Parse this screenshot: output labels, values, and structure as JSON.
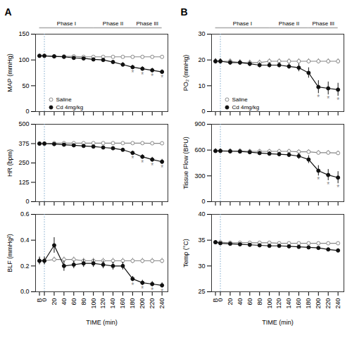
{
  "chart_data": [
    {
      "type": "line",
      "panel_label": "A",
      "phases": [
        {
          "label": "Phase I",
          "x0": -10,
          "x1": 100,
          "color": "#aaaaaa"
        },
        {
          "label": "Phase II",
          "x0": 100,
          "x1": 180,
          "color": "#aaaaaa"
        },
        {
          "label": "Phase III",
          "x0": 180,
          "x1": 240,
          "color": "#aaaaaa"
        }
      ],
      "x": [
        -10,
        0,
        20,
        40,
        60,
        80,
        100,
        120,
        140,
        160,
        180,
        200,
        220,
        240
      ],
      "xlim": [
        -18,
        252
      ],
      "xticks": [
        {
          "value": -10,
          "label": "B"
        },
        0,
        20,
        40,
        60,
        80,
        100,
        120,
        140,
        160,
        180,
        200,
        220,
        240
      ],
      "tick_labels": "y",
      "ylim": [
        0,
        150
      ],
      "yticks": [
        0,
        50,
        100,
        150
      ],
      "ylabel": "MAP (mmHg)",
      "legend": "lower left",
      "vlines": [
        {
          "x": 0,
          "color": "#7faacc",
          "line_style": "dotted"
        }
      ],
      "series": [
        {
          "name": "Saline",
          "color": "#888888",
          "marker": "open_circle",
          "values": [
            108,
            108,
            107,
            107,
            107,
            106,
            106,
            106,
            106,
            106,
            106,
            106,
            106,
            106
          ],
          "errors": [
            2,
            2,
            2,
            2,
            2,
            2,
            2,
            2,
            2,
            2,
            2,
            2,
            2,
            2
          ]
        },
        {
          "name": "Cd 4mg/kg",
          "color": "#111111",
          "marker": "circle",
          "values": [
            108,
            108,
            107,
            106,
            104,
            103,
            101,
            100,
            96,
            91,
            86,
            83,
            80,
            77
          ],
          "errors": [
            2,
            2,
            2,
            2,
            2,
            2,
            2,
            3,
            3,
            4,
            4,
            4,
            4,
            4
          ],
          "significant": [
            false,
            false,
            false,
            false,
            false,
            false,
            false,
            false,
            false,
            false,
            true,
            true,
            true,
            true
          ],
          "significance_mark": "*",
          "significance_color": "#888888"
        }
      ]
    },
    {
      "type": "line",
      "panel_label": "B",
      "phases": [
        {
          "label": "Phase I",
          "x0": -10,
          "x1": 100,
          "color": "#aaaaaa"
        },
        {
          "label": "Phase II",
          "x0": 100,
          "x1": 180,
          "color": "#aaaaaa"
        },
        {
          "label": "Phase III",
          "x0": 180,
          "x1": 240,
          "color": "#aaaaaa"
        }
      ],
      "x": [
        -10,
        0,
        20,
        40,
        60,
        80,
        100,
        120,
        140,
        160,
        180,
        200,
        220,
        240
      ],
      "xlim": [
        -18,
        252
      ],
      "xticks": [
        {
          "value": -10,
          "label": "B"
        },
        0,
        20,
        40,
        60,
        80,
        100,
        120,
        140,
        160,
        180,
        200,
        220,
        240
      ],
      "tick_labels": "y",
      "ylim": [
        0,
        30
      ],
      "yticks": [
        0,
        10,
        20,
        30
      ],
      "ylabel": "PO₂ (mmHg)",
      "legend": "lower left",
      "vlines": [
        {
          "x": 0,
          "color": "#7faacc",
          "line_style": "dotted"
        }
      ],
      "series": [
        {
          "name": "Saline",
          "color": "#888888",
          "marker": "open_circle",
          "values": [
            19.5,
            19.5,
            19.5,
            19.0,
            19.0,
            19.0,
            19.5,
            19.5,
            19.5,
            19.5,
            19.5,
            19.5,
            19.5,
            19.5
          ],
          "errors": [
            1.0,
            1.0,
            1.0,
            1.0,
            1.0,
            1.0,
            1.0,
            1.0,
            1.0,
            1.0,
            1.0,
            1.0,
            1.0,
            1.0
          ]
        },
        {
          "name": "Cd 4mg/kg",
          "color": "#111111",
          "marker": "circle",
          "values": [
            19.5,
            19.5,
            19.0,
            19.0,
            18.5,
            18.0,
            18.0,
            18.0,
            17.5,
            17.0,
            15.0,
            9.5,
            9.0,
            8.5
          ],
          "errors": [
            1.0,
            1.0,
            1.0,
            1.0,
            1.0,
            1.0,
            1.0,
            1.0,
            1.0,
            1.5,
            2.0,
            2.5,
            2.5,
            2.5
          ],
          "significant": [
            false,
            false,
            false,
            false,
            false,
            false,
            false,
            false,
            false,
            false,
            false,
            true,
            true,
            true
          ],
          "significance_mark": "*",
          "significance_color": "#888888"
        }
      ]
    },
    {
      "type": "line",
      "x": [
        -10,
        0,
        20,
        40,
        60,
        80,
        100,
        120,
        140,
        160,
        180,
        200,
        220,
        240
      ],
      "xlim": [
        -18,
        252
      ],
      "xticks": [
        {
          "value": -10,
          "label": "B"
        },
        0,
        20,
        40,
        60,
        80,
        100,
        120,
        140,
        160,
        180,
        200,
        220,
        240
      ],
      "tick_labels": "y",
      "ylim": [
        0,
        500
      ],
      "yticks": [
        0,
        125,
        250,
        375,
        500
      ],
      "ylabel": "HR (bpm)",
      "vlines": [
        {
          "x": 0,
          "color": "#7faacc",
          "line_style": "dotted"
        }
      ],
      "series": [
        {
          "color": "#888888",
          "marker": "open_circle",
          "values": [
            375,
            375,
            378,
            378,
            378,
            378,
            378,
            378,
            378,
            378,
            378,
            378,
            377,
            377
          ],
          "errors": [
            8,
            8,
            8,
            8,
            8,
            8,
            8,
            8,
            8,
            8,
            8,
            8,
            8,
            8
          ]
        },
        {
          "color": "#111111",
          "marker": "circle",
          "values": [
            375,
            375,
            372,
            368,
            364,
            360,
            356,
            350,
            345,
            335,
            315,
            290,
            272,
            258
          ],
          "errors": [
            8,
            8,
            8,
            8,
            8,
            8,
            9,
            9,
            10,
            10,
            12,
            14,
            15,
            16
          ],
          "significant": [
            false,
            false,
            false,
            false,
            false,
            false,
            false,
            false,
            false,
            false,
            true,
            true,
            true,
            true
          ],
          "significance_mark": "*",
          "significance_color": "#888888"
        }
      ]
    },
    {
      "type": "line",
      "x": [
        -10,
        0,
        20,
        40,
        60,
        80,
        100,
        120,
        140,
        160,
        180,
        200,
        220,
        240
      ],
      "xlim": [
        -18,
        252
      ],
      "xticks": [
        {
          "value": -10,
          "label": "B"
        },
        0,
        20,
        40,
        60,
        80,
        100,
        120,
        140,
        160,
        180,
        200,
        220,
        240
      ],
      "tick_labels": "y",
      "ylim": [
        0,
        900
      ],
      "yticks": [
        0,
        300,
        600,
        900
      ],
      "ylabel": "Tissue Flow (BPU)",
      "vlines": [
        {
          "x": 0,
          "color": "#7faacc",
          "line_style": "dotted"
        }
      ],
      "series": [
        {
          "color": "#888888",
          "marker": "open_circle",
          "values": [
            590,
            590,
            590,
            590,
            585,
            585,
            585,
            585,
            585,
            580,
            580,
            570,
            570,
            565
          ],
          "errors": [
            25,
            25,
            25,
            25,
            25,
            25,
            25,
            25,
            25,
            25,
            25,
            25,
            25,
            25
          ]
        },
        {
          "color": "#111111",
          "marker": "circle",
          "values": [
            590,
            590,
            585,
            583,
            575,
            565,
            558,
            552,
            545,
            530,
            490,
            360,
            310,
            280
          ],
          "errors": [
            25,
            25,
            25,
            25,
            25,
            25,
            25,
            25,
            30,
            35,
            45,
            60,
            65,
            70
          ],
          "significant": [
            false,
            false,
            false,
            false,
            false,
            false,
            false,
            false,
            false,
            false,
            false,
            true,
            true,
            true
          ],
          "significance_mark": "*",
          "significance_color": "#888888"
        }
      ]
    },
    {
      "type": "line",
      "x": [
        -10,
        0,
        20,
        40,
        60,
        80,
        100,
        120,
        140,
        160,
        180,
        200,
        220,
        240
      ],
      "xlim": [
        -18,
        252
      ],
      "xticks": [
        {
          "value": -10,
          "label": "B"
        },
        0,
        20,
        40,
        60,
        80,
        100,
        120,
        140,
        160,
        180,
        200,
        220,
        240
      ],
      "xlabel": "TIME (min)",
      "ylim": [
        0.0,
        0.6
      ],
      "yticks": [
        {
          "value": 0.0,
          "label": "0.0"
        },
        {
          "value": 0.2,
          "label": "0.2"
        },
        {
          "value": 0.4,
          "label": "0.4"
        },
        {
          "value": 0.6,
          "label": "0.6"
        }
      ],
      "ylabel": "BLF (mmHg²)",
      "vlines": [
        {
          "x": 0,
          "color": "#7faacc",
          "line_style": "dotted"
        }
      ],
      "series": [
        {
          "color": "#888888",
          "marker": "open_circle",
          "values": [
            0.24,
            0.24,
            0.25,
            0.25,
            0.25,
            0.24,
            0.24,
            0.24,
            0.24,
            0.24,
            0.24,
            0.24,
            0.24,
            0.24
          ],
          "errors": [
            0.02,
            0.02,
            0.02,
            0.02,
            0.02,
            0.02,
            0.02,
            0.02,
            0.02,
            0.02,
            0.02,
            0.02,
            0.02,
            0.02
          ]
        },
        {
          "color": "#111111",
          "marker": "circle",
          "values": [
            0.24,
            0.24,
            0.36,
            0.2,
            0.21,
            0.22,
            0.22,
            0.21,
            0.2,
            0.2,
            0.1,
            0.07,
            0.06,
            0.05
          ],
          "errors": [
            0.03,
            0.03,
            0.06,
            0.04,
            0.03,
            0.03,
            0.03,
            0.03,
            0.03,
            0.03,
            0.02,
            0.02,
            0.02,
            0.02
          ],
          "significant": [
            false,
            false,
            false,
            false,
            false,
            false,
            false,
            false,
            false,
            false,
            true,
            true,
            true,
            true
          ],
          "significance_mark": "*",
          "significance_color": "#888888"
        }
      ]
    },
    {
      "type": "line",
      "x": [
        -10,
        0,
        20,
        40,
        60,
        80,
        100,
        120,
        140,
        160,
        180,
        200,
        220,
        240
      ],
      "xlim": [
        -18,
        252
      ],
      "xticks": [
        {
          "value": -10,
          "label": "B"
        },
        0,
        20,
        40,
        60,
        80,
        100,
        120,
        140,
        160,
        180,
        200,
        220,
        240
      ],
      "xlabel": "TIME (min)",
      "ylim": [
        25,
        40
      ],
      "yticks": [
        25,
        30,
        35,
        40
      ],
      "ylabel": "Temp (°C)",
      "vlines": [
        {
          "x": 0,
          "color": "#7faacc",
          "line_style": "dotted"
        }
      ],
      "series": [
        {
          "color": "#888888",
          "marker": "open_circle",
          "values": [
            34.6,
            34.6,
            34.5,
            34.5,
            34.5,
            34.5,
            34.5,
            34.4,
            34.4,
            34.4,
            34.4,
            34.4,
            34.4,
            34.4
          ],
          "errors": [
            0.15,
            0.15,
            0.15,
            0.15,
            0.15,
            0.15,
            0.15,
            0.15,
            0.15,
            0.15,
            0.15,
            0.15,
            0.15,
            0.15
          ]
        },
        {
          "color": "#111111",
          "marker": "circle",
          "values": [
            34.6,
            34.4,
            34.3,
            34.2,
            34.1,
            34.0,
            33.9,
            33.9,
            33.8,
            33.7,
            33.6,
            33.5,
            33.2,
            33.0
          ],
          "errors": [
            0.15,
            0.15,
            0.15,
            0.15,
            0.15,
            0.15,
            0.15,
            0.15,
            0.15,
            0.15,
            0.15,
            0.2,
            0.3,
            0.35
          ],
          "significant": [
            false,
            false,
            false,
            false,
            false,
            false,
            false,
            false,
            false,
            false,
            false,
            false,
            false,
            false
          ],
          "significance_mark": "*",
          "significance_color": "#888888"
        }
      ]
    }
  ]
}
